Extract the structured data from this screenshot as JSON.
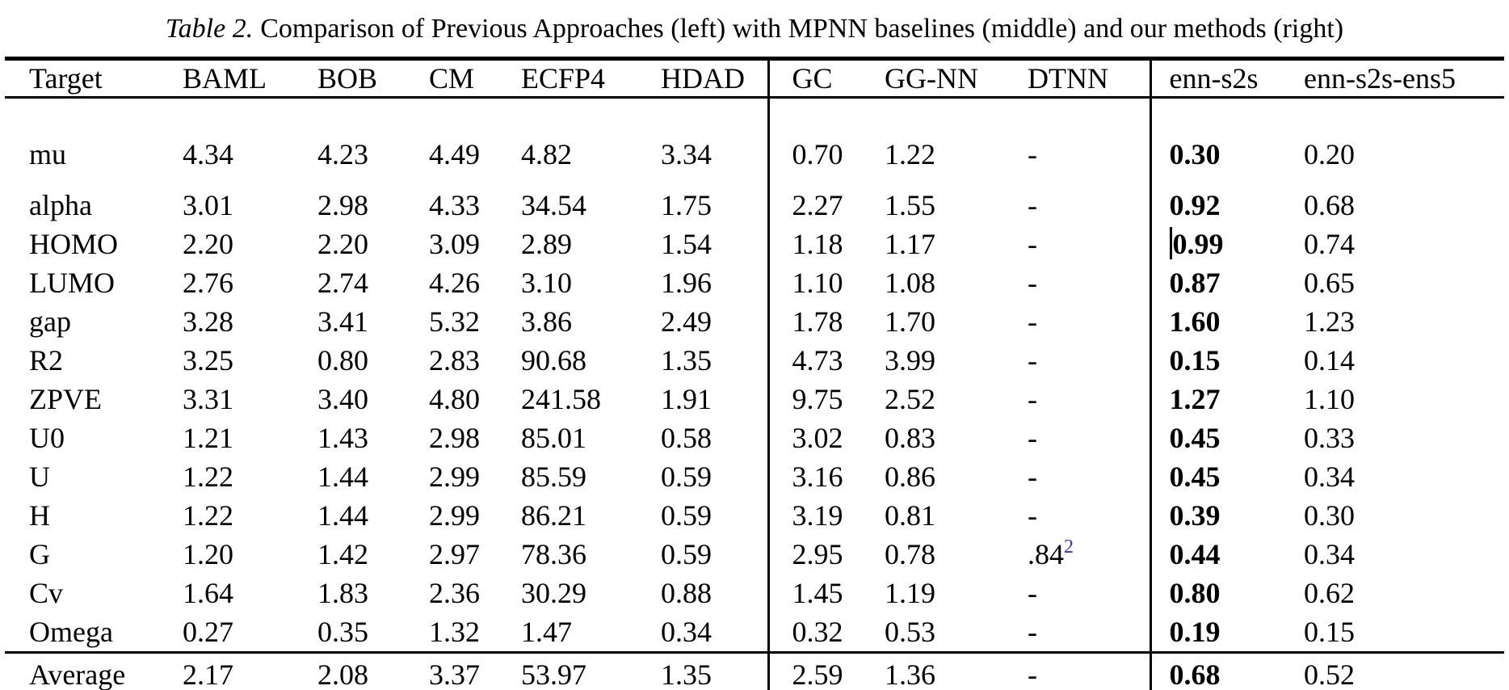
{
  "caption": {
    "tag": "Table 2.",
    "text": "Comparison of Previous Approaches (left) with MPNN baselines (middle) and our methods (right)"
  },
  "colors": {
    "text": "#000000",
    "background": "#ffffff",
    "footnote_link": "#3333cc"
  },
  "table": {
    "columns": [
      "Target",
      "BAML",
      "BOB",
      "CM",
      "ECFP4",
      "HDAD",
      "GC",
      "GG-NN",
      "DTNN",
      "enn-s2s",
      "enn-s2s-ens5"
    ],
    "column_groups": [
      {
        "name": "previous-approaches",
        "columns": [
          "BAML",
          "BOB",
          "CM",
          "ECFP4",
          "HDAD"
        ]
      },
      {
        "name": "mpnn-baselines",
        "columns": [
          "GC",
          "GG-NN",
          "DTNN"
        ]
      },
      {
        "name": "our-methods",
        "columns": [
          "enn-s2s",
          "enn-s2s-ens5"
        ]
      }
    ],
    "rows": [
      {
        "label": "mu",
        "values": [
          "4.34",
          "4.23",
          "4.49",
          "4.82",
          "3.34",
          "0.70",
          "1.22",
          "-",
          "0.30",
          "0.20"
        ]
      },
      {
        "label": "alpha",
        "values": [
          "3.01",
          "2.98",
          "4.33",
          "34.54",
          "1.75",
          "2.27",
          "1.55",
          "-",
          "0.92",
          "0.68"
        ]
      },
      {
        "label": "HOMO",
        "values": [
          "2.20",
          "2.20",
          "3.09",
          "2.89",
          "1.54",
          "1.18",
          "1.17",
          "-",
          {
            "text": "0.99",
            "caret": true
          },
          "0.74"
        ]
      },
      {
        "label": "LUMO",
        "values": [
          "2.76",
          "2.74",
          "4.26",
          "3.10",
          "1.96",
          "1.10",
          "1.08",
          "-",
          "0.87",
          "0.65"
        ]
      },
      {
        "label": "gap",
        "values": [
          "3.28",
          "3.41",
          "5.32",
          "3.86",
          "2.49",
          "1.78",
          "1.70",
          "-",
          "1.60",
          "1.23"
        ]
      },
      {
        "label": "R2",
        "values": [
          "3.25",
          "0.80",
          "2.83",
          "90.68",
          "1.35",
          "4.73",
          "3.99",
          "-",
          "0.15",
          "0.14"
        ]
      },
      {
        "label": "ZPVE",
        "values": [
          "3.31",
          "3.40",
          "4.80",
          "241.58",
          "1.91",
          "9.75",
          "2.52",
          "-",
          "1.27",
          "1.10"
        ]
      },
      {
        "label": "U0",
        "values": [
          "1.21",
          "1.43",
          "2.98",
          "85.01",
          "0.58",
          "3.02",
          "0.83",
          "-",
          "0.45",
          "0.33"
        ]
      },
      {
        "label": "U",
        "values": [
          "1.22",
          "1.44",
          "2.99",
          "85.59",
          "0.59",
          "3.16",
          "0.86",
          "-",
          "0.45",
          "0.34"
        ]
      },
      {
        "label": "H",
        "values": [
          "1.22",
          "1.44",
          "2.99",
          "86.21",
          "0.59",
          "3.19",
          "0.81",
          "-",
          "0.39",
          "0.30"
        ]
      },
      {
        "label": "G",
        "values": [
          "1.20",
          "1.42",
          "2.97",
          "78.36",
          "0.59",
          "2.95",
          "0.78",
          {
            "text": ".84",
            "sup": "2"
          },
          "0.44",
          "0.34"
        ]
      },
      {
        "label": "Cv",
        "values": [
          "1.64",
          "1.83",
          "2.36",
          "30.29",
          "0.88",
          "1.45",
          "1.19",
          "-",
          "0.80",
          "0.62"
        ]
      },
      {
        "label": "Omega",
        "values": [
          "0.27",
          "0.35",
          "1.32",
          "1.47",
          "0.34",
          "0.32",
          "0.53",
          "-",
          "0.19",
          "0.15"
        ]
      }
    ],
    "average": {
      "label": "Average",
      "values": [
        "2.17",
        "2.08",
        "3.37",
        "53.97",
        "1.35",
        "2.59",
        "1.36",
        "-",
        "0.68",
        "0.52"
      ]
    },
    "bold_column": "enn-s2s"
  }
}
